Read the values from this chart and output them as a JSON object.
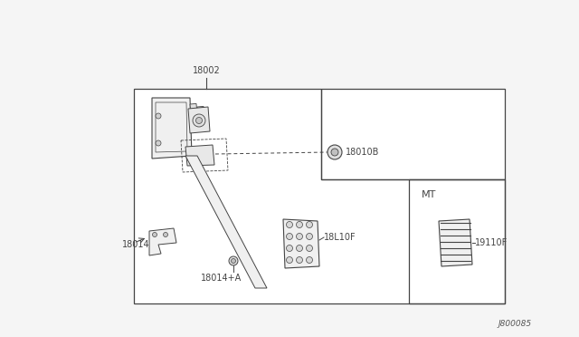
{
  "bg_color": "#e8e8e8",
  "diagram_bg": "#ffffff",
  "line_color": "#999999",
  "dark_line": "#444444",
  "title_label": "J800085",
  "label_18002": "18002",
  "label_18010B": "18010B",
  "label_18L10F": "18L10F",
  "label_19110F": "19110F",
  "label_18014": "18014",
  "label_18014A": "18014+A",
  "label_MT": "MT"
}
